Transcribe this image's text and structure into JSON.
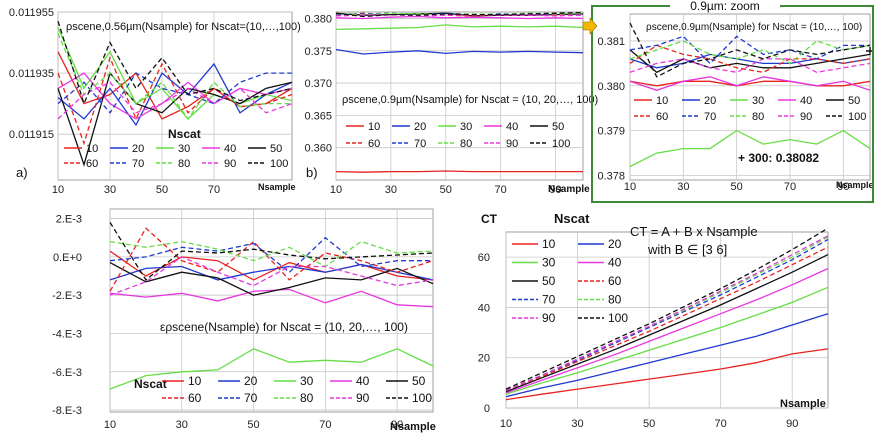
{
  "colors": {
    "grid": "#c8c8c8",
    "axis": "#888888",
    "zoom_frame": "#3a8a3a",
    "zoom_arrow": "#f5b800",
    "series": {
      "10": "#e8231e",
      "20": "#1f3ad0",
      "30": "#66dd44",
      "40": "#e836e0",
      "50": "#111111",
      "60": "#e8231e",
      "70": "#1f3ad0",
      "80": "#66dd44",
      "90": "#e836e0",
      "100": "#111111"
    }
  },
  "chart_data": [
    {
      "id": "a",
      "type": "line",
      "panel_label": "a)",
      "title": "ρscene,0.56µm(Nsample)  for Nscat=(10,…,100)",
      "legend_title": "Nscat",
      "xlabel": "Nsample",
      "x_ticks": [
        "10",
        "30",
        "50",
        "70"
      ],
      "y_ticks": [
        "0.011955",
        "0.011935",
        "0.011915"
      ],
      "xlim": [
        10,
        100
      ],
      "ylim": [
        0.0119,
        0.011955
      ],
      "x": [
        10,
        20,
        30,
        40,
        50,
        60,
        70,
        80,
        90,
        100
      ],
      "series": [
        {
          "name": "10",
          "dash": false,
          "values": [
            0.011942,
            0.011925,
            0.011928,
            0.011935,
            0.01192,
            0.011924,
            0.01193,
            0.011924,
            0.011925,
            0.01193
          ]
        },
        {
          "name": "20",
          "dash": false,
          "values": [
            0.011927,
            0.01192,
            0.01193,
            0.011918,
            0.011935,
            0.011928,
            0.011938,
            0.011922,
            0.011928,
            0.011932
          ]
        },
        {
          "name": "30",
          "dash": false,
          "values": [
            0.01195,
            0.01193,
            0.011942,
            0.011925,
            0.01193,
            0.01192,
            0.011928,
            0.011925,
            0.011928,
            0.011926
          ]
        },
        {
          "name": "40",
          "dash": false,
          "values": [
            0.01193,
            0.011935,
            0.011925,
            0.01192,
            0.011925,
            0.011932,
            0.011925,
            0.01193,
            0.011928,
            0.01193
          ]
        },
        {
          "name": "50",
          "dash": false,
          "values": [
            0.01193,
            0.011905,
            0.011935,
            0.011925,
            0.011922,
            0.01193,
            0.011928,
            0.011925,
            0.01193,
            0.011932
          ]
        },
        {
          "name": "60",
          "dash": true,
          "values": [
            0.011935,
            0.011912,
            0.01194,
            0.01192,
            0.011938,
            0.011922,
            0.01193,
            0.011924,
            0.011925,
            0.011928
          ]
        },
        {
          "name": "70",
          "dash": true,
          "values": [
            0.011925,
            0.011932,
            0.011922,
            0.011935,
            0.01193,
            0.011928,
            0.011925,
            0.011932,
            0.011935,
            0.011935
          ]
        },
        {
          "name": "80",
          "dash": true,
          "values": [
            0.011948,
            0.011928,
            0.011935,
            0.011925,
            0.011932,
            0.01192,
            0.011932,
            0.011924,
            0.011925,
            0.011925
          ]
        },
        {
          "name": "90",
          "dash": true,
          "values": [
            0.01192,
            0.011928,
            0.011932,
            0.011922,
            0.011925,
            0.01193,
            0.011925,
            0.01193,
            0.011922,
            0.011925
          ]
        },
        {
          "name": "100",
          "dash": true,
          "values": [
            0.011952,
            0.011925,
            0.011945,
            0.01193,
            0.01194,
            0.011928,
            0.01193,
            0.011926,
            0.011928,
            0.01193
          ]
        }
      ]
    },
    {
      "id": "b",
      "type": "line",
      "panel_label": "b)",
      "title": "ρscene,0.9µm(Nsample)  for Nscat = (10, 20,…, 100)",
      "legend_title": "",
      "xlabel": "Nsample",
      "x_ticks": [
        "10",
        "30",
        "50",
        "70",
        "90"
      ],
      "y_ticks": [
        "0.380",
        "0.375",
        "0.370",
        "0.365",
        "0.360"
      ],
      "xlim": [
        10,
        100
      ],
      "ylim": [
        0.355,
        0.381
      ],
      "x": [
        10,
        20,
        30,
        40,
        50,
        60,
        70,
        80,
        90,
        100
      ],
      "series": [
        {
          "name": "10",
          "dash": false,
          "values": [
            0.3563,
            0.3562,
            0.3563,
            0.3563,
            0.3564,
            0.3563,
            0.3563,
            0.3563,
            0.3563,
            0.3563
          ]
        },
        {
          "name": "20",
          "dash": false,
          "values": [
            0.3752,
            0.3745,
            0.3748,
            0.375,
            0.3746,
            0.3749,
            0.3748,
            0.3749,
            0.3748,
            0.3747
          ]
        },
        {
          "name": "30",
          "dash": false,
          "values": [
            0.3783,
            0.3784,
            0.3785,
            0.3786,
            0.379,
            0.3787,
            0.3788,
            0.3787,
            0.3788,
            0.3786
          ]
        },
        {
          "name": "40",
          "dash": false,
          "values": [
            0.3801,
            0.38,
            0.3802,
            0.3803,
            0.3801,
            0.3802,
            0.3801,
            0.38,
            0.3801,
            0.38
          ]
        },
        {
          "name": "50",
          "dash": false,
          "values": [
            0.3808,
            0.3805,
            0.3806,
            0.3807,
            0.3808,
            0.3804,
            0.3805,
            0.3805,
            0.3806,
            0.3807
          ]
        },
        {
          "name": "60",
          "dash": true,
          "values": [
            0.3805,
            0.3808,
            0.3806,
            0.3807,
            0.3805,
            0.3804,
            0.3806,
            0.3806,
            0.3805,
            0.3806
          ]
        },
        {
          "name": "70",
          "dash": true,
          "values": [
            0.3806,
            0.3807,
            0.3808,
            0.3806,
            0.3808,
            0.3806,
            0.3807,
            0.3806,
            0.3807,
            0.3807
          ]
        },
        {
          "name": "80",
          "dash": true,
          "values": [
            0.3807,
            0.3806,
            0.3808,
            0.3807,
            0.3806,
            0.3807,
            0.3806,
            0.3808,
            0.3807,
            0.3808
          ]
        },
        {
          "name": "90",
          "dash": true,
          "values": [
            0.3804,
            0.3805,
            0.3806,
            0.3804,
            0.3805,
            0.3806,
            0.3805,
            0.3805,
            0.3804,
            0.3805
          ]
        },
        {
          "name": "100",
          "dash": true,
          "values": [
            0.3808,
            0.3803,
            0.3806,
            0.3805,
            0.3807,
            0.3806,
            0.3806,
            0.3807,
            0.3808,
            0.3809
          ]
        }
      ]
    },
    {
      "id": "zoom",
      "type": "line",
      "panel_label": "",
      "title": "ρscene,0.9µm(Nsample)  for Nscat = (10,…, 100)",
      "frame_label": "0.9µm: zoom",
      "annotation": "+ 300: 0.38082",
      "legend_title": "",
      "xlabel": "Nsample",
      "x_ticks": [
        "10",
        "30",
        "50",
        "70",
        "90"
      ],
      "y_ticks": [
        "0.381",
        "0.380",
        "0.379",
        "0.378"
      ],
      "xlim": [
        10,
        100
      ],
      "ylim": [
        0.3779,
        0.3816
      ],
      "x": [
        10,
        20,
        30,
        40,
        50,
        60,
        70,
        80,
        90,
        100
      ],
      "series": [
        {
          "name": "10",
          "dash": false,
          "values": [
            0.3801,
            0.38,
            0.3801,
            0.3801,
            0.38,
            0.3801,
            0.3801,
            0.38,
            0.38,
            0.3801
          ]
        },
        {
          "name": "20",
          "dash": false,
          "values": [
            0.3806,
            0.3804,
            0.3805,
            0.3807,
            0.3806,
            0.3805,
            0.3805,
            0.3806,
            0.3805,
            0.3806
          ]
        },
        {
          "name": "30",
          "dash": false,
          "values": [
            0.3782,
            0.3785,
            0.3786,
            0.3786,
            0.379,
            0.3787,
            0.3788,
            0.3787,
            0.379,
            0.3786
          ]
        },
        {
          "name": "40",
          "dash": false,
          "values": [
            0.3801,
            0.3799,
            0.3801,
            0.3802,
            0.38,
            0.3802,
            0.3801,
            0.38,
            0.3801,
            0.3799
          ]
        },
        {
          "name": "50",
          "dash": false,
          "values": [
            0.3808,
            0.3803,
            0.3806,
            0.3804,
            0.3805,
            0.3804,
            0.3804,
            0.3805,
            0.3806,
            0.3807
          ]
        },
        {
          "name": "60",
          "dash": true,
          "values": [
            0.3805,
            0.3809,
            0.3807,
            0.3806,
            0.3804,
            0.3803,
            0.3806,
            0.3806,
            0.3805,
            0.3806
          ]
        },
        {
          "name": "70",
          "dash": true,
          "values": [
            0.3808,
            0.3809,
            0.3811,
            0.3805,
            0.3811,
            0.3807,
            0.3808,
            0.3806,
            0.3809,
            0.3809
          ]
        },
        {
          "name": "80",
          "dash": true,
          "values": [
            0.3806,
            0.3808,
            0.381,
            0.3807,
            0.3806,
            0.3808,
            0.3805,
            0.381,
            0.3808,
            0.3809
          ]
        },
        {
          "name": "90",
          "dash": true,
          "values": [
            0.3803,
            0.3805,
            0.3806,
            0.3804,
            0.3803,
            0.3806,
            0.3806,
            0.3803,
            0.3804,
            0.3805
          ]
        },
        {
          "name": "100",
          "dash": true,
          "values": [
            0.3814,
            0.3802,
            0.3805,
            0.3806,
            0.3808,
            0.3806,
            0.3808,
            0.3807,
            0.3808,
            0.3809
          ]
        }
      ]
    },
    {
      "id": "eps",
      "type": "line",
      "panel_label": "",
      "title": "ερscene(Nsample)  for Nscat = (10, 20,…, 100)",
      "legend_title": "Nscat",
      "xlabel": "Nsample",
      "x_ticks": [
        "10",
        "30",
        "50",
        "70",
        "90"
      ],
      "y_ticks": [
        "2.E-3",
        "0.E+0",
        "-2.E-3",
        "-4.E-3",
        "-6.E-3",
        "-8.E-3"
      ],
      "xlim": [
        10,
        100
      ],
      "ylim": [
        -0.0081,
        0.0025
      ],
      "x": [
        10,
        20,
        30,
        40,
        50,
        60,
        70,
        80,
        90,
        100
      ],
      "series": [
        {
          "name": "10",
          "dash": false,
          "values": [
            0.0003,
            -0.001,
            0.0,
            -0.0002,
            -0.0012,
            -0.0003,
            -0.0008,
            -0.0004,
            -0.001,
            -0.0012
          ]
        },
        {
          "name": "20",
          "dash": false,
          "values": [
            -0.0012,
            -0.0006,
            -0.0005,
            -0.0012,
            -0.0008,
            -0.0005,
            -0.0008,
            -0.0004,
            -0.0008,
            -0.0012
          ]
        },
        {
          "name": "30",
          "dash": false,
          "values": [
            -0.0069,
            -0.0062,
            -0.006,
            -0.0059,
            -0.0048,
            -0.0055,
            -0.0054,
            -0.0055,
            -0.0048,
            -0.0057
          ]
        },
        {
          "name": "40",
          "dash": false,
          "values": [
            -0.0019,
            -0.0021,
            -0.0019,
            -0.0023,
            -0.0018,
            -0.0017,
            -0.0024,
            -0.0018,
            -0.0025,
            -0.0026
          ]
        },
        {
          "name": "50",
          "dash": false,
          "values": [
            -0.0003,
            -0.0013,
            -0.0008,
            -0.0011,
            -0.002,
            -0.0016,
            -0.0011,
            -0.0012,
            -0.0006,
            -0.0014
          ]
        },
        {
          "name": "60",
          "dash": true,
          "values": [
            -0.0018,
            0.0015,
            -0.0002,
            -0.0008,
            0.0008,
            -0.0012,
            0.0002,
            -0.0002,
            -0.0008,
            -0.0002
          ]
        },
        {
          "name": "70",
          "dash": true,
          "values": [
            -0.0002,
            0.0,
            0.0005,
            0.0003,
            0.0007,
            -0.0008,
            0.001,
            -0.0005,
            -0.0002,
            -0.0002
          ]
        },
        {
          "name": "80",
          "dash": true,
          "values": [
            0.0008,
            0.0005,
            0.0008,
            0.0004,
            -0.0002,
            0.0005,
            -0.0005,
            0.0008,
            0.0002,
            0.0003
          ]
        },
        {
          "name": "90",
          "dash": true,
          "values": [
            -0.002,
            -0.0013,
            0.0,
            -0.0008,
            -0.0015,
            -0.0005,
            -0.0005,
            -0.001,
            -0.0015,
            -0.0012
          ]
        },
        {
          "name": "100",
          "dash": true,
          "values": [
            0.0018,
            -0.0012,
            0.0003,
            0.0002,
            0.0004,
            0.0001,
            -0.0001,
            0.0,
            0.0001,
            0.0002
          ]
        }
      ]
    },
    {
      "id": "ct",
      "type": "line",
      "panel_label": "",
      "title": "CT",
      "equation_line1": "CT = A + B x Nsample",
      "equation_line2": "with B ∈ [3   6]",
      "legend_title": "Nscat",
      "xlabel": "Nsample",
      "x_ticks": [
        "10",
        "30",
        "50",
        "70",
        "90"
      ],
      "y_ticks": [
        "60",
        "40",
        "20",
        "0"
      ],
      "xlim": [
        10,
        100
      ],
      "ylim": [
        0,
        70
      ],
      "x": [
        10,
        20,
        30,
        40,
        50,
        60,
        70,
        80,
        90,
        100
      ],
      "series": [
        {
          "name": "10",
          "dash": false,
          "values": [
            3.3,
            5.5,
            7.5,
            9.5,
            11.5,
            13.5,
            15.5,
            18,
            21.5,
            23.5
          ]
        },
        {
          "name": "20",
          "dash": false,
          "values": [
            4.5,
            8,
            11,
            14.5,
            18,
            21.5,
            25,
            28.5,
            33,
            37.5
          ]
        },
        {
          "name": "30",
          "dash": false,
          "values": [
            5.5,
            10,
            14,
            18.5,
            23,
            27.5,
            32,
            37,
            42,
            48
          ]
        },
        {
          "name": "40",
          "dash": false,
          "values": [
            6,
            11,
            16,
            21,
            26.5,
            32,
            37.5,
            43,
            49,
            55.5
          ]
        },
        {
          "name": "50",
          "dash": false,
          "values": [
            6.5,
            12,
            17.5,
            23,
            29,
            35,
            41,
            47.5,
            54,
            61
          ]
        },
        {
          "name": "60",
          "dash": true,
          "values": [
            7,
            12.5,
            18.5,
            24.5,
            30.5,
            37,
            43.5,
            50,
            57,
            64
          ]
        },
        {
          "name": "70",
          "dash": true,
          "values": [
            7,
            13,
            19,
            25.5,
            32,
            38.5,
            45,
            52,
            59,
            67
          ]
        },
        {
          "name": "80",
          "dash": true,
          "values": [
            7,
            13,
            19.5,
            26,
            32.5,
            39,
            46,
            53,
            60,
            68
          ]
        },
        {
          "name": "90",
          "dash": true,
          "values": [
            7,
            13,
            19.5,
            26,
            32.5,
            39.5,
            46.5,
            53.5,
            61,
            68.5
          ]
        },
        {
          "name": "100",
          "dash": true,
          "values": [
            7.5,
            14,
            20.5,
            27,
            33.5,
            40.5,
            47.5,
            55,
            63,
            71.5
          ]
        }
      ]
    }
  ]
}
